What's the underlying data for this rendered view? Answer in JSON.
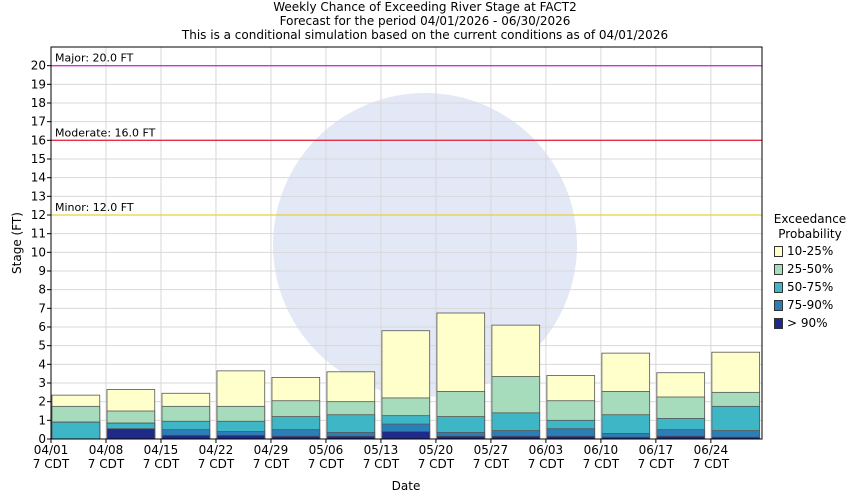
{
  "titles": {
    "line1": "Weekly Chance of Exceeding River Stage at FACT2",
    "line2": "Forecast for the period 04/01/2026 - 06/30/2026",
    "line3": "This is a conditional simulation based on the current conditions as of 04/01/2026"
  },
  "chart_data": {
    "type": "bar",
    "stacked": true,
    "title": "Weekly Chance of Exceeding River Stage at FACT2",
    "ylabel": "Stage (FT)",
    "xlabel": "Date",
    "ylim": [
      0,
      21
    ],
    "grid": true,
    "legend_position": "right",
    "categories": [
      "04/01",
      "04/08",
      "04/15",
      "04/22",
      "04/29",
      "05/06",
      "05/13",
      "05/20",
      "05/27",
      "06/03",
      "06/10",
      "06/17",
      "06/24"
    ],
    "x_tick_labels": [
      {
        "date": "04/01",
        "time": "7 CDT"
      },
      {
        "date": "04/08",
        "time": "7 CDT"
      },
      {
        "date": "04/15",
        "time": "7 CDT"
      },
      {
        "date": "04/22",
        "time": "7 CDT"
      },
      {
        "date": "04/29",
        "time": "7 CDT"
      },
      {
        "date": "05/06",
        "time": "7 CDT"
      },
      {
        "date": "05/13",
        "time": "7 CDT"
      },
      {
        "date": "05/20",
        "time": "7 CDT"
      },
      {
        "date": "05/27",
        "time": "7 CDT"
      },
      {
        "date": "06/03",
        "time": "7 CDT"
      },
      {
        "date": "06/10",
        "time": "7 CDT"
      },
      {
        "date": "06/17",
        "time": "7 CDT"
      },
      {
        "date": "06/24",
        "time": "7 CDT"
      }
    ],
    "y_ticks": [
      0,
      1,
      2,
      3,
      4,
      5,
      6,
      7,
      8,
      9,
      10,
      11,
      12,
      13,
      14,
      15,
      16,
      17,
      18,
      19,
      20
    ],
    "series": [
      {
        "name": "> 90%",
        "color": "#1f2a88",
        "values": [
          0.9,
          0.55,
          0.2,
          0.2,
          0.15,
          0.15,
          0.4,
          0.15,
          0.15,
          0.15,
          0.1,
          0.15,
          0.1
        ]
      },
      {
        "name": "75-90%",
        "color": "#2b7fb8",
        "values": [
          0.9,
          0.85,
          0.5,
          0.4,
          0.5,
          0.35,
          0.8,
          0.35,
          0.45,
          0.55,
          0.3,
          0.5,
          0.45
        ]
      },
      {
        "name": "50-75%",
        "color": "#3fb6c6",
        "values": [
          0.9,
          0.85,
          0.95,
          0.95,
          1.2,
          1.3,
          1.25,
          1.2,
          1.4,
          1.0,
          1.3,
          1.1,
          1.75
        ]
      },
      {
        "name": "25-50%",
        "color": "#a6dcbb",
        "values": [
          1.75,
          1.5,
          1.75,
          1.75,
          2.05,
          2.0,
          2.2,
          2.55,
          3.35,
          2.05,
          2.55,
          2.25,
          2.5
        ]
      },
      {
        "name": "10-25%",
        "color": "#ffffcc",
        "values": [
          2.35,
          2.65,
          2.45,
          3.65,
          3.3,
          3.6,
          5.8,
          6.75,
          6.1,
          3.4,
          4.6,
          3.55,
          4.65
        ]
      }
    ],
    "flood_categories": [
      {
        "label": "Major: 20.0 FT",
        "value": 20.0,
        "color": "#cc33cc"
      },
      {
        "label": "Moderate: 16.0 FT",
        "value": 16.0,
        "color": "#e0304a"
      },
      {
        "label": "Minor: 12.0 FT",
        "value": 12.0,
        "color": "#e6d23a"
      }
    ],
    "legend": {
      "title_line1": "Exceedance",
      "title_line2": "Probability",
      "items": [
        "10-25%",
        "25-50%",
        "50-75%",
        "75-90%",
        "> 90%"
      ]
    }
  }
}
